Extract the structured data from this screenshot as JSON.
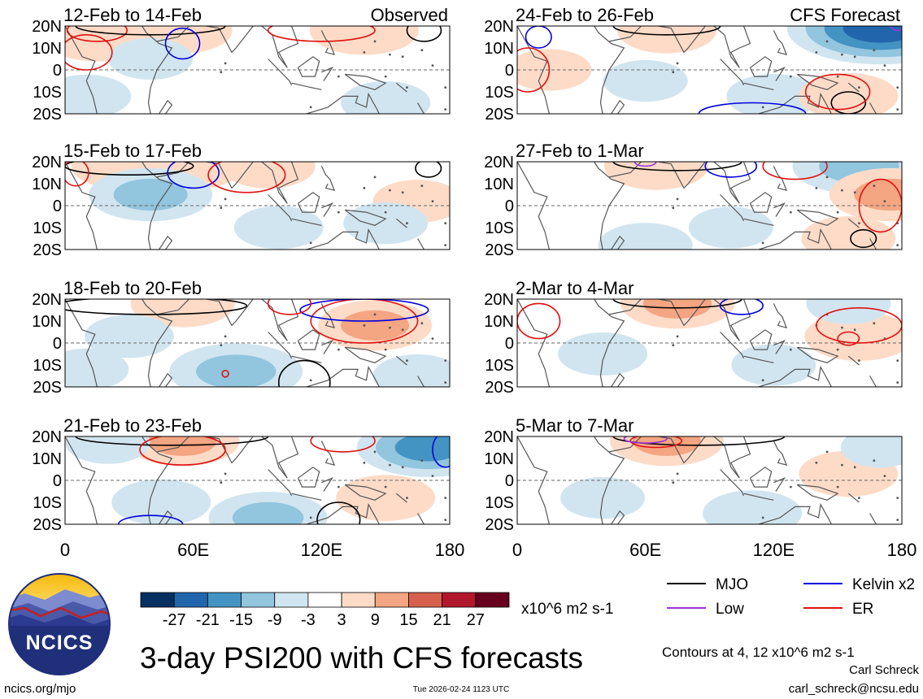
{
  "chart_data": {
    "type": "heatmap",
    "title": "3-day PSI200 with CFS forecasts",
    "variable": "PSI200",
    "units": "x10^6 m2 s-1",
    "colorbar": {
      "ticks": [
        "-27",
        "-21",
        "-15",
        "-9",
        "-3",
        "3",
        "9",
        "15",
        "21",
        "27"
      ],
      "colors": [
        "#053061",
        "#2166ac",
        "#4393c3",
        "#92c5de",
        "#d1e5f0",
        "#ffffff",
        "#fddbc7",
        "#f4a582",
        "#d6604d",
        "#b2182b",
        "#67001f"
      ]
    },
    "axes": {
      "x_ticks": [
        "0",
        "60E",
        "120E",
        "180"
      ],
      "x_values": [
        0,
        60,
        120,
        180
      ],
      "y_ticks": [
        "20N",
        "10N",
        "0",
        "10S",
        "20S"
      ],
      "y_values": [
        20,
        10,
        0,
        -10,
        -20
      ],
      "xlim": [
        0,
        180
      ],
      "ylim": [
        -20,
        20
      ]
    },
    "columns": [
      {
        "label": "Observed",
        "panels": [
          "12-Feb to 14-Feb",
          "15-Feb to 17-Feb",
          "18-Feb to 20-Feb",
          "21-Feb to 23-Feb"
        ]
      },
      {
        "label": "CFS Forecast",
        "panels": [
          "24-Feb to 26-Feb",
          "27-Feb to 1-Mar",
          "2-Mar to 4-Mar",
          "5-Mar to 7-Mar"
        ]
      }
    ],
    "anomalies": [
      [
        [
          [
            15,
            15,
            9
          ],
          [
            55,
            18,
            7
          ],
          [
            140,
            18,
            9
          ],
          [
            10,
            -12,
            -5
          ],
          [
            150,
            -15,
            -5
          ],
          [
            40,
            5,
            -4
          ]
        ],
        [
          [
            25,
            18,
            6
          ],
          [
            60,
            18,
            7
          ],
          [
            95,
            18,
            6
          ],
          [
            40,
            5,
            -12
          ],
          [
            165,
            2,
            5
          ],
          [
            100,
            -10,
            -5
          ],
          [
            150,
            -8,
            -4
          ]
        ],
        [
          [
            55,
            18,
            8
          ],
          [
            145,
            8,
            10
          ],
          [
            80,
            -13,
            -14
          ],
          [
            30,
            3,
            -5
          ],
          [
            10,
            -12,
            -4
          ],
          [
            165,
            -15,
            -5
          ]
        ],
        [
          [
            55,
            18,
            10
          ],
          [
            45,
            -10,
            -7
          ],
          [
            95,
            -17,
            -11
          ],
          [
            170,
            15,
            -16
          ],
          [
            150,
            -8,
            7
          ],
          [
            20,
            17,
            -4
          ]
        ]
      ],
      [
        [
          [
            170,
            19,
            -25
          ],
          [
            70,
            18,
            7
          ],
          [
            15,
            0,
            4
          ],
          [
            120,
            -12,
            -6
          ],
          [
            155,
            -12,
            7
          ],
          [
            60,
            -5,
            -4
          ]
        ],
        [
          [
            160,
            18,
            -14
          ],
          [
            65,
            18,
            8
          ],
          [
            175,
            5,
            12
          ],
          [
            155,
            -15,
            6
          ],
          [
            60,
            -18,
            -6
          ],
          [
            100,
            -10,
            -4
          ]
        ],
        [
          [
            75,
            18,
            10
          ],
          [
            160,
            3,
            9
          ],
          [
            40,
            -5,
            -5
          ],
          [
            120,
            -10,
            -4
          ],
          [
            155,
            18,
            -4
          ]
        ],
        [
          [
            70,
            18,
            10
          ],
          [
            155,
            3,
            7
          ],
          [
            110,
            -15,
            -7
          ],
          [
            40,
            -8,
            -4
          ],
          [
            170,
            15,
            -3
          ]
        ]
      ]
    ],
    "contours": {
      "levels": "Contours at 4, 12 x10^6 m2 s-1",
      "legend": [
        {
          "label": "MJO",
          "color": "#000000"
        },
        {
          "label": "Kelvin x2",
          "color": "#0000dd"
        },
        {
          "label": "Low",
          "color": "#9933dd"
        },
        {
          "label": "ER",
          "color": "#e01010"
        }
      ],
      "panels": [
        [
          {
            "t": "ER",
            "cx": 15,
            "cy": 18,
            "rx": 14,
            "ry": 5
          },
          {
            "t": "ER",
            "cx": 10,
            "cy": 8,
            "rx": 12,
            "ry": 8
          },
          {
            "t": "MJO",
            "cx": 40,
            "cy": 20,
            "rx": 35,
            "ry": 4
          },
          {
            "t": "Kelvin x2",
            "cx": 55,
            "cy": 12,
            "rx": 8,
            "ry": 7
          },
          {
            "t": "ER",
            "cx": 120,
            "cy": 18,
            "rx": 25,
            "ry": 5
          },
          {
            "t": "MJO",
            "cx": 168,
            "cy": 18,
            "rx": 8,
            "ry": 5
          }
        ],
        [
          {
            "t": "MJO",
            "cx": 30,
            "cy": 18,
            "rx": 30,
            "ry": 4
          },
          {
            "t": "Kelvin x2",
            "cx": 60,
            "cy": 15,
            "rx": 12,
            "ry": 7
          },
          {
            "t": "ER",
            "cx": 85,
            "cy": 14,
            "rx": 18,
            "ry": 8
          },
          {
            "t": "ER",
            "cx": 5,
            "cy": 15,
            "rx": 6,
            "ry": 6
          },
          {
            "t": "MJO",
            "cx": 170,
            "cy": 17,
            "rx": 6,
            "ry": 4
          }
        ],
        [
          {
            "t": "MJO",
            "cx": 40,
            "cy": 17,
            "rx": 45,
            "ry": 4
          },
          {
            "t": "ER",
            "cx": 140,
            "cy": 10,
            "rx": 25,
            "ry": 10
          },
          {
            "t": "Kelvin x2",
            "cx": 140,
            "cy": 15,
            "rx": 30,
            "ry": 5
          },
          {
            "t": "ER",
            "cx": 105,
            "cy": 18,
            "rx": 10,
            "ry": 5
          },
          {
            "t": "ER",
            "cx": 75,
            "cy": -14,
            "rx": 1.5,
            "ry": 1.5
          },
          {
            "t": "MJO",
            "cx": 112,
            "cy": -18,
            "rx": 12,
            "ry": 10
          }
        ],
        [
          {
            "t": "MJO",
            "cx": 50,
            "cy": 20,
            "rx": 45,
            "ry": 4
          },
          {
            "t": "ER",
            "cx": 55,
            "cy": 14,
            "rx": 20,
            "ry": 7
          },
          {
            "t": "ER",
            "cx": 130,
            "cy": 18,
            "rx": 15,
            "ry": 5
          },
          {
            "t": "Kelvin x2",
            "cx": 178,
            "cy": 14,
            "rx": 6,
            "ry": 8
          },
          {
            "t": "Kelvin x2",
            "cx": 40,
            "cy": -20,
            "rx": 15,
            "ry": 4
          },
          {
            "t": "MJO",
            "cx": 128,
            "cy": -18,
            "rx": 10,
            "ry": 8
          }
        ],
        [
          {
            "t": "Kelvin x2",
            "cx": 10,
            "cy": 15,
            "rx": 6,
            "ry": 5
          },
          {
            "t": "MJO",
            "cx": 70,
            "cy": 20,
            "rx": 25,
            "ry": 4
          },
          {
            "t": "ER",
            "cx": 5,
            "cy": 0,
            "rx": 10,
            "ry": 10
          },
          {
            "t": "Kelvin x2",
            "cx": 110,
            "cy": -20,
            "rx": 25,
            "ry": 5
          },
          {
            "t": "MJO",
            "cx": 155,
            "cy": -15,
            "rx": 8,
            "ry": 5
          },
          {
            "t": "ER",
            "cx": 150,
            "cy": -10,
            "rx": 15,
            "ry": 8
          },
          {
            "t": "Low",
            "cx": 178,
            "cy": 20,
            "rx": 3,
            "ry": 2
          }
        ],
        [
          {
            "t": "MJO",
            "cx": 75,
            "cy": 20,
            "rx": 30,
            "ry": 4
          },
          {
            "t": "Kelvin x2",
            "cx": 100,
            "cy": 18,
            "rx": 12,
            "ry": 5
          },
          {
            "t": "ER",
            "cx": 130,
            "cy": 18,
            "rx": 15,
            "ry": 6
          },
          {
            "t": "ER",
            "cx": 170,
            "cy": 0,
            "rx": 10,
            "ry": 12
          },
          {
            "t": "MJO",
            "cx": 162,
            "cy": -15,
            "rx": 6,
            "ry": 4
          },
          {
            "t": "Low",
            "cx": 60,
            "cy": 20,
            "rx": 5,
            "ry": 2
          }
        ],
        [
          {
            "t": "MJO",
            "cx": 75,
            "cy": 20,
            "rx": 30,
            "ry": 4
          },
          {
            "t": "ER",
            "cx": 10,
            "cy": 10,
            "rx": 10,
            "ry": 8
          },
          {
            "t": "ER",
            "cx": 160,
            "cy": 8,
            "rx": 20,
            "ry": 8
          },
          {
            "t": "ER",
            "cx": 155,
            "cy": 2,
            "rx": 5,
            "ry": 3
          },
          {
            "t": "Kelvin x2",
            "cx": 105,
            "cy": 17,
            "rx": 10,
            "ry": 4
          }
        ],
        [
          {
            "t": "MJO",
            "cx": 85,
            "cy": 20,
            "rx": 40,
            "ry": 4
          },
          {
            "t": "ER",
            "cx": 65,
            "cy": 18,
            "rx": 12,
            "ry": 3
          },
          {
            "t": "Low",
            "cx": 60,
            "cy": 19,
            "rx": 10,
            "ry": 2
          }
        ]
      ]
    }
  },
  "logo": {
    "text": "NCICS"
  },
  "footer": {
    "url": "ncics.org/mjo",
    "timestamp": "Tue 2026-02-24 1123 UTC",
    "author": "Carl Schreck",
    "email": "carl_schreck@ncsu.edu"
  }
}
